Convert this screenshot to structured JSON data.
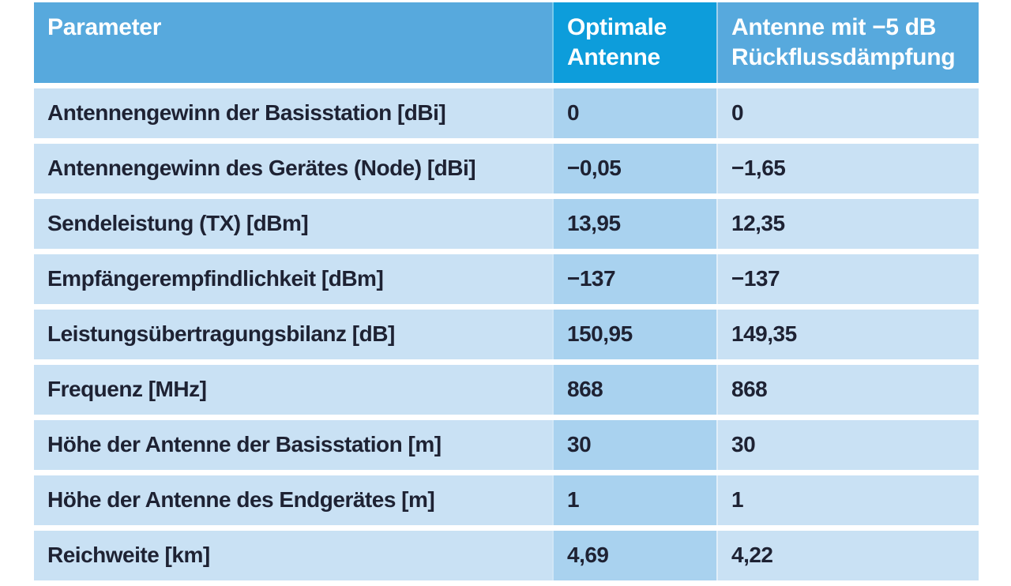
{
  "colors": {
    "page_bg": "#ffffff",
    "header_bg": "#57a9dd",
    "header_highlight_bg": "#0d9ddb",
    "row_bg": "#c9e1f4",
    "row_highlight_bg": "#a9d2ef",
    "header_text": "#ffffff",
    "body_text": "#1e2233"
  },
  "table": {
    "columns": [
      {
        "label": "Parameter"
      },
      {
        "label": "Optimale Antenne"
      },
      {
        "label": "Antenne mit −5 dB Rückflussdämpfung"
      }
    ],
    "rows": [
      {
        "param": "Antennengewinn der Basisstation [dBi]",
        "optimal": "0",
        "lossy": "0"
      },
      {
        "param": "Antennengewinn des Gerätes (Node) [dBi]",
        "optimal": "−0,05",
        "lossy": "−1,65"
      },
      {
        "param": "Sendeleistung (TX) [dBm]",
        "optimal": "13,95",
        "lossy": "12,35"
      },
      {
        "param": "Empfängerempfindlichkeit [dBm]",
        "optimal": "−137",
        "lossy": "−137"
      },
      {
        "param": "Leistungsübertragungsbilanz [dB]",
        "optimal": "150,95",
        "lossy": "149,35"
      },
      {
        "param": "Frequenz [MHz]",
        "optimal": "868",
        "lossy": "868"
      },
      {
        "param": "Höhe der Antenne der Basisstation [m]",
        "optimal": "30",
        "lossy": "30"
      },
      {
        "param": "Höhe der Antenne des Endgerätes [m]",
        "optimal": "1",
        "lossy": "1"
      },
      {
        "param": "Reichweite [km]",
        "optimal": "4,69",
        "lossy": "4,22"
      }
    ]
  },
  "chart_data": {
    "type": "table",
    "title": "",
    "columns": [
      "Parameter",
      "Optimale Antenne",
      "Antenne mit −5 dB Rückflussdämpfung"
    ],
    "rows": [
      [
        "Antennengewinn der Basisstation [dBi]",
        "0",
        "0"
      ],
      [
        "Antennengewinn des Gerätes (Node) [dBi]",
        "−0,05",
        "−1,65"
      ],
      [
        "Sendeleistung (TX) [dBm]",
        "13,95",
        "12,35"
      ],
      [
        "Empfängerempfindlichkeit [dBm]",
        "−137",
        "−137"
      ],
      [
        "Leistungsübertragungsbilanz [dB]",
        "150,95",
        "149,35"
      ],
      [
        "Frequenz [MHz]",
        "868",
        "868"
      ],
      [
        "Höhe der Antenne der Basisstation [m]",
        "30",
        "30"
      ],
      [
        "Höhe der Antenne des Endgerätes [m]",
        "1",
        "1"
      ],
      [
        "Reichweite [km]",
        "4,69",
        "4,22"
      ]
    ]
  }
}
